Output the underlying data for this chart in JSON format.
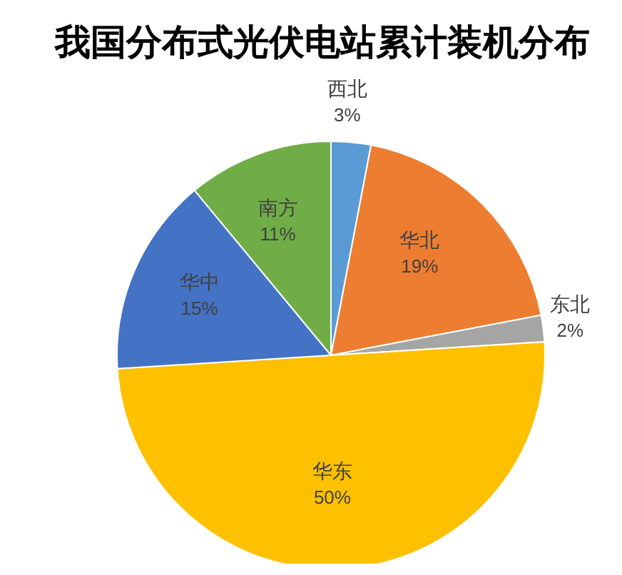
{
  "chart_data": {
    "type": "pie",
    "title": "我国分布式光伏电站累计装机分布",
    "categories": [
      "西北",
      "华北",
      "东北",
      "华东",
      "华中",
      "南方"
    ],
    "values": [
      3,
      19,
      2,
      50,
      15,
      11
    ],
    "colors": [
      "#5b9bd5",
      "#ed7d31",
      "#a5a5a5",
      "#ffc000",
      "#4472c4",
      "#70ad47"
    ],
    "value_labels": [
      "3%",
      "19%",
      "2%",
      "50%",
      "15%",
      "11%"
    ],
    "legend": false
  }
}
